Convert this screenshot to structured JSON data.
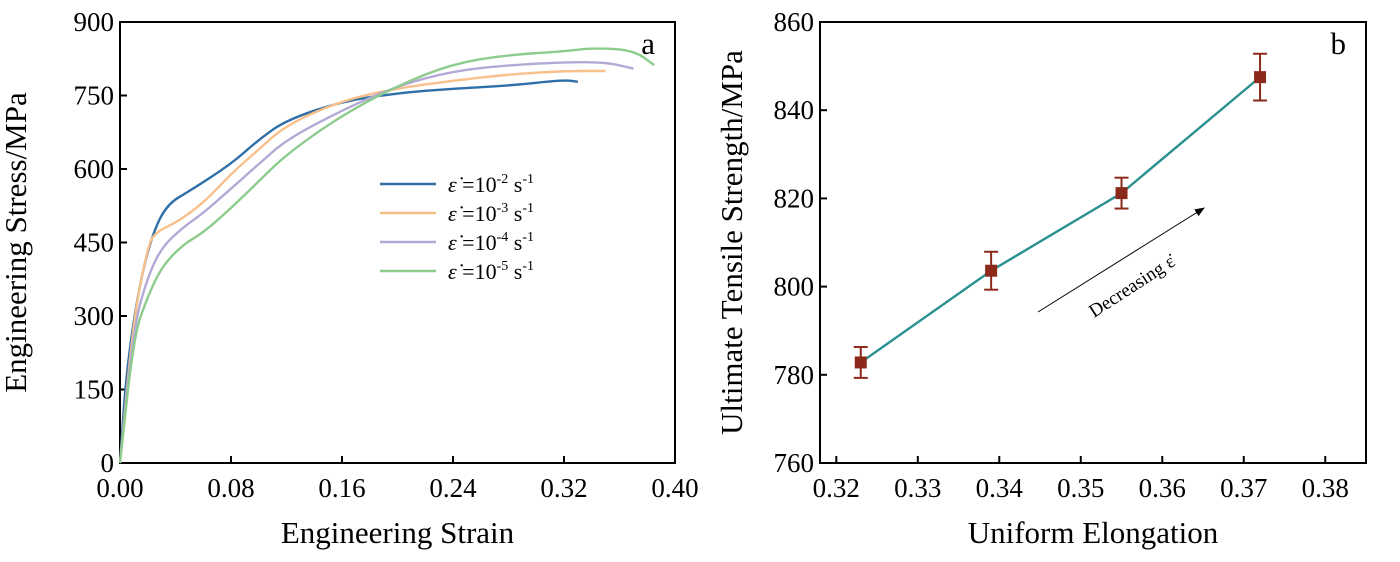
{
  "chart_data": [
    {
      "type": "line",
      "panel_label": "a",
      "xlabel": "Engineering Strain",
      "ylabel": "Engineering Stress/MPa",
      "xlim": [
        0,
        0.4
      ],
      "ylim": [
        0,
        900
      ],
      "xticks": [
        "0.00",
        "0.08",
        "0.16",
        "0.24",
        "0.32",
        "0.40"
      ],
      "yticks": [
        "0",
        "150",
        "300",
        "450",
        "600",
        "750",
        "900"
      ],
      "grid": false,
      "legend_position": "center-right",
      "series": [
        {
          "name": "ε̇ =10⁻² s⁻¹",
          "label_base": "=10",
          "exp": "-2",
          "unit": "s",
          "unit_exp": "-1",
          "color": "#2f6fa8",
          "x": [
            0,
            0.005,
            0.015,
            0.025,
            0.035,
            0.05,
            0.08,
            0.1,
            0.12,
            0.16,
            0.2,
            0.24,
            0.28,
            0.32,
            0.33
          ],
          "y": [
            0,
            200,
            380,
            480,
            530,
            555,
            610,
            660,
            700,
            738,
            755,
            764,
            770,
            782,
            778
          ]
        },
        {
          "name": "ε̇ =10⁻³ s⁻¹",
          "label_base": "=10",
          "exp": "-3",
          "unit": "s",
          "unit_exp": "-1",
          "color": "#f8c08a",
          "x": [
            0,
            0.01,
            0.02,
            0.025,
            0.04,
            0.06,
            0.08,
            0.1,
            0.12,
            0.16,
            0.2,
            0.24,
            0.28,
            0.32,
            0.35
          ],
          "y": [
            0,
            300,
            440,
            470,
            490,
            530,
            590,
            640,
            690,
            740,
            765,
            780,
            793,
            800,
            800
          ]
        },
        {
          "name": "ε̇ =10⁻⁴ s⁻¹",
          "label_base": "=10",
          "exp": "-4",
          "unit": "s",
          "unit_exp": "-1",
          "color": "#b3a9d6",
          "x": [
            0,
            0.01,
            0.02,
            0.03,
            0.045,
            0.06,
            0.08,
            0.1,
            0.12,
            0.16,
            0.2,
            0.24,
            0.28,
            0.32,
            0.35,
            0.37
          ],
          "y": [
            0,
            280,
            380,
            440,
            480,
            510,
            560,
            610,
            660,
            720,
            770,
            800,
            812,
            818,
            818,
            805
          ]
        },
        {
          "name": "ε̇ =10⁻⁵ s⁻¹",
          "label_base": "=10",
          "exp": "-5",
          "unit": "s",
          "unit_exp": "-1",
          "color": "#8dcc8c",
          "x": [
            0,
            0.01,
            0.02,
            0.03,
            0.045,
            0.06,
            0.08,
            0.1,
            0.12,
            0.16,
            0.2,
            0.24,
            0.28,
            0.32,
            0.34,
            0.37,
            0.385
          ],
          "y": [
            0,
            260,
            340,
            400,
            445,
            470,
            520,
            575,
            630,
            710,
            770,
            815,
            833,
            840,
            847,
            843,
            812
          ]
        }
      ]
    },
    {
      "type": "line",
      "panel_label": "b",
      "xlabel": "Uniform Elongation",
      "ylabel": "Ultimate Tensile Strength/MPa",
      "xlim": [
        0.318,
        0.385
      ],
      "ylim": [
        760,
        860
      ],
      "xticks": [
        "0.32",
        "0.33",
        "0.34",
        "0.35",
        "0.36",
        "0.37",
        "0.38"
      ],
      "yticks": [
        "760",
        "780",
        "800",
        "820",
        "840",
        "860"
      ],
      "grid": false,
      "line_color": "#2a9090",
      "marker_color": "#8b2a1a",
      "x": [
        0.323,
        0.339,
        0.355,
        0.372
      ],
      "y": [
        782.8,
        803.6,
        821.2,
        847.5
      ],
      "error": [
        3.5,
        4.3,
        3.5,
        5.3
      ],
      "annotation": "Decreasing ε̇"
    }
  ]
}
